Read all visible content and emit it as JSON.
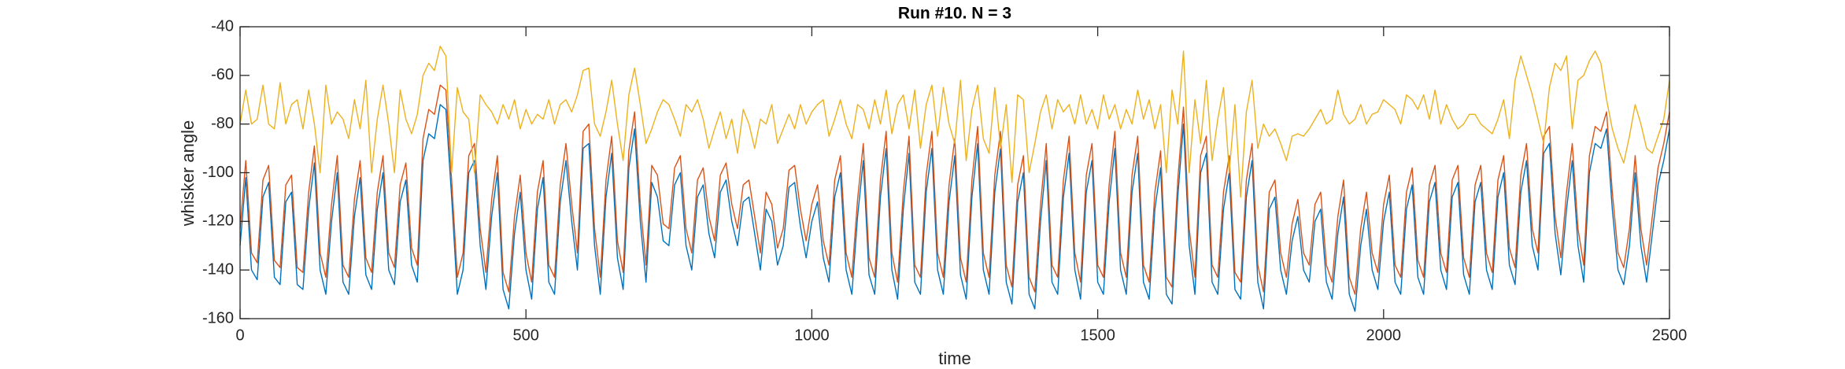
{
  "chart_data": {
    "type": "line",
    "title": "Run #10. N = 3",
    "x_label": "time",
    "y_label": "whisker angle",
    "xlim": [
      0,
      2500
    ],
    "xticks": [
      0,
      500,
      1000,
      1500,
      2000,
      2500
    ],
    "ylim": [
      -160,
      -40
    ],
    "yticks": [
      -160,
      -140,
      -120,
      -100,
      -80,
      -60,
      -40
    ],
    "grid": false,
    "x": [
      0,
      10,
      20,
      30,
      40,
      50,
      60,
      70,
      80,
      90,
      100,
      110,
      120,
      130,
      140,
      150,
      160,
      170,
      180,
      190,
      200,
      210,
      220,
      230,
      240,
      250,
      260,
      270,
      280,
      290,
      300,
      310,
      320,
      330,
      340,
      350,
      360,
      370,
      380,
      390,
      400,
      410,
      420,
      430,
      440,
      450,
      460,
      470,
      480,
      490,
      500,
      510,
      520,
      530,
      540,
      550,
      560,
      570,
      580,
      590,
      600,
      610,
      620,
      630,
      640,
      650,
      660,
      670,
      680,
      690,
      700,
      710,
      720,
      730,
      740,
      750,
      760,
      770,
      780,
      790,
      800,
      810,
      820,
      830,
      840,
      850,
      860,
      870,
      880,
      890,
      900,
      910,
      920,
      930,
      940,
      950,
      960,
      970,
      980,
      990,
      1000,
      1010,
      1020,
      1030,
      1040,
      1050,
      1060,
      1070,
      1080,
      1090,
      1100,
      1110,
      1120,
      1130,
      1140,
      1150,
      1160,
      1170,
      1180,
      1190,
      1200,
      1210,
      1220,
      1230,
      1240,
      1250,
      1260,
      1270,
      1280,
      1290,
      1300,
      1310,
      1320,
      1330,
      1340,
      1350,
      1360,
      1370,
      1380,
      1390,
      1400,
      1410,
      1420,
      1430,
      1440,
      1450,
      1460,
      1470,
      1480,
      1490,
      1500,
      1510,
      1520,
      1530,
      1540,
      1550,
      1560,
      1570,
      1580,
      1590,
      1600,
      1610,
      1620,
      1630,
      1640,
      1650,
      1660,
      1670,
      1680,
      1690,
      1700,
      1710,
      1720,
      1730,
      1740,
      1750,
      1760,
      1770,
      1780,
      1790,
      1800,
      1810,
      1820,
      1830,
      1840,
      1850,
      1860,
      1870,
      1880,
      1890,
      1900,
      1910,
      1920,
      1930,
      1940,
      1950,
      1960,
      1970,
      1980,
      1990,
      2000,
      2010,
      2020,
      2030,
      2040,
      2050,
      2060,
      2070,
      2080,
      2090,
      2100,
      2110,
      2120,
      2130,
      2140,
      2150,
      2160,
      2170,
      2180,
      2190,
      2200,
      2210,
      2220,
      2230,
      2240,
      2250,
      2260,
      2270,
      2280,
      2290,
      2300,
      2310,
      2320,
      2330,
      2340,
      2350,
      2360,
      2370,
      2380,
      2390,
      2400,
      2410,
      2420,
      2430,
      2440,
      2450,
      2460,
      2470,
      2480,
      2490,
      2500
    ],
    "series": [
      {
        "color": "#0072bd",
        "values": [
          -130,
          -102,
          -140,
          -144,
          -110,
          -104,
          -143,
          -146,
          -112,
          -108,
          -146,
          -148,
          -115,
          -96,
          -140,
          -150,
          -120,
          -100,
          -145,
          -150,
          -118,
          -102,
          -142,
          -148,
          -115,
          -100,
          -140,
          -146,
          -112,
          -103,
          -138,
          -145,
          -95,
          -84,
          -86,
          -72,
          -74,
          -110,
          -150,
          -140,
          -100,
          -95,
          -130,
          -148,
          -118,
          -100,
          -148,
          -156,
          -125,
          -108,
          -140,
          -152,
          -115,
          -102,
          -145,
          -150,
          -112,
          -95,
          -120,
          -140,
          -90,
          -88,
          -130,
          -150,
          -110,
          -92,
          -135,
          -148,
          -98,
          -82,
          -120,
          -145,
          -104,
          -110,
          -128,
          -130,
          -105,
          -100,
          -130,
          -140,
          -110,
          -105,
          -125,
          -135,
          -108,
          -103,
          -120,
          -130,
          -112,
          -110,
          -125,
          -140,
          -115,
          -120,
          -138,
          -130,
          -106,
          -104,
          -122,
          -135,
          -120,
          -112,
          -135,
          -145,
          -110,
          -100,
          -140,
          -150,
          -118,
          -95,
          -142,
          -150,
          -110,
          -90,
          -140,
          -152,
          -115,
          -92,
          -145,
          -150,
          -108,
          -90,
          -140,
          -150,
          -112,
          -93,
          -142,
          -152,
          -110,
          -88,
          -140,
          -150,
          -108,
          -90,
          -145,
          -154,
          -112,
          -100,
          -150,
          -156,
          -120,
          -95,
          -145,
          -150,
          -110,
          -92,
          -140,
          -152,
          -108,
          -95,
          -145,
          -150,
          -112,
          -90,
          -140,
          -150,
          -108,
          -92,
          -145,
          -152,
          -115,
          -98,
          -150,
          -154,
          -110,
          -80,
          -130,
          -150,
          -100,
          -92,
          -145,
          -150,
          -115,
          -100,
          -148,
          -152,
          -110,
          -95,
          -145,
          -156,
          -115,
          -110,
          -140,
          -150,
          -128,
          -118,
          -140,
          -145,
          -120,
          -115,
          -145,
          -152,
          -125,
          -110,
          -150,
          -157,
          -130,
          -115,
          -140,
          -148,
          -120,
          -108,
          -145,
          -150,
          -115,
          -105,
          -143,
          -150,
          -112,
          -104,
          -140,
          -148,
          -110,
          -104,
          -142,
          -150,
          -112,
          -104,
          -140,
          -148,
          -110,
          -100,
          -138,
          -146,
          -108,
          -95,
          -130,
          -140,
          -92,
          -88,
          -125,
          -142,
          -115,
          -95,
          -130,
          -145,
          -100,
          -88,
          -90,
          -82,
          -115,
          -140,
          -146,
          -130,
          -100,
          -130,
          -145,
          -125,
          -105,
          -95,
          -82
        ]
      },
      {
        "color": "#d95319",
        "values": [
          -123,
          -95,
          -133,
          -137,
          -103,
          -97,
          -136,
          -139,
          -105,
          -101,
          -139,
          -141,
          -108,
          -89,
          -133,
          -143,
          -113,
          -93,
          -138,
          -143,
          -111,
          -95,
          -135,
          -141,
          -108,
          -93,
          -133,
          -139,
          -105,
          -96,
          -131,
          -138,
          -86,
          -74,
          -76,
          -64,
          -66,
          -103,
          -143,
          -133,
          -93,
          -88,
          -123,
          -141,
          -111,
          -93,
          -141,
          -149,
          -118,
          -101,
          -133,
          -145,
          -108,
          -95,
          -138,
          -143,
          -105,
          -88,
          -113,
          -133,
          -83,
          -80,
          -123,
          -143,
          -103,
          -85,
          -128,
          -141,
          -91,
          -75,
          -113,
          -138,
          -97,
          -101,
          -121,
          -123,
          -98,
          -93,
          -123,
          -133,
          -103,
          -98,
          -118,
          -128,
          -101,
          -96,
          -113,
          -123,
          -105,
          -103,
          -118,
          -133,
          -108,
          -113,
          -131,
          -123,
          -99,
          -97,
          -115,
          -128,
          -113,
          -105,
          -128,
          -138,
          -103,
          -93,
          -133,
          -143,
          -111,
          -88,
          -135,
          -143,
          -103,
          -83,
          -133,
          -145,
          -108,
          -85,
          -138,
          -143,
          -101,
          -83,
          -133,
          -143,
          -105,
          -86,
          -135,
          -145,
          -103,
          -81,
          -133,
          -143,
          -101,
          -83,
          -138,
          -147,
          -105,
          -93,
          -143,
          -149,
          -113,
          -88,
          -138,
          -143,
          -103,
          -85,
          -133,
          -145,
          -101,
          -88,
          -138,
          -143,
          -105,
          -83,
          -133,
          -143,
          -101,
          -85,
          -138,
          -145,
          -108,
          -91,
          -143,
          -147,
          -103,
          -73,
          -123,
          -143,
          -93,
          -85,
          -138,
          -143,
          -108,
          -93,
          -141,
          -145,
          -103,
          -88,
          -138,
          -149,
          -108,
          -103,
          -133,
          -143,
          -121,
          -111,
          -133,
          -138,
          -113,
          -108,
          -138,
          -145,
          -118,
          -103,
          -143,
          -150,
          -123,
          -108,
          -133,
          -141,
          -113,
          -101,
          -138,
          -143,
          -108,
          -98,
          -136,
          -143,
          -105,
          -97,
          -133,
          -141,
          -103,
          -97,
          -135,
          -143,
          -105,
          -97,
          -133,
          -141,
          -103,
          -93,
          -131,
          -139,
          -101,
          -88,
          -123,
          -133,
          -85,
          -81,
          -118,
          -135,
          -108,
          -88,
          -123,
          -138,
          -93,
          -81,
          -83,
          -75,
          -108,
          -133,
          -139,
          -123,
          -93,
          -123,
          -138,
          -118,
          -98,
          -88,
          -75
        ]
      },
      {
        "color": "#edb120",
        "values": [
          -80,
          -66,
          -80,
          -78,
          -64,
          -80,
          -82,
          -63,
          -80,
          -72,
          -70,
          -82,
          -66,
          -80,
          -100,
          -64,
          -80,
          -75,
          -78,
          -86,
          -70,
          -82,
          -62,
          -100,
          -78,
          -64,
          -80,
          -100,
          -66,
          -78,
          -84,
          -76,
          -60,
          -55,
          -58,
          -48,
          -52,
          -100,
          -65,
          -75,
          -78,
          -100,
          -68,
          -72,
          -75,
          -80,
          -72,
          -78,
          -70,
          -82,
          -74,
          -80,
          -76,
          -78,
          -70,
          -80,
          -72,
          -70,
          -75,
          -68,
          -58,
          -57,
          -80,
          -85,
          -75,
          -62,
          -80,
          -95,
          -68,
          -57,
          -72,
          -88,
          -82,
          -75,
          -70,
          -72,
          -78,
          -85,
          -72,
          -75,
          -70,
          -78,
          -90,
          -82,
          -75,
          -86,
          -78,
          -92,
          -74,
          -80,
          -90,
          -78,
          -80,
          -72,
          -88,
          -82,
          -76,
          -82,
          -72,
          -80,
          -75,
          -72,
          -70,
          -85,
          -78,
          -70,
          -80,
          -86,
          -72,
          -74,
          -82,
          -70,
          -80,
          -66,
          -84,
          -72,
          -68,
          -82,
          -66,
          -90,
          -72,
          -64,
          -85,
          -65,
          -80,
          -88,
          -62,
          -95,
          -74,
          -64,
          -86,
          -92,
          -65,
          -90,
          -72,
          -104,
          -68,
          -70,
          -100,
          -88,
          -75,
          -68,
          -82,
          -70,
          -75,
          -72,
          -80,
          -68,
          -80,
          -74,
          -82,
          -68,
          -78,
          -72,
          -82,
          -74,
          -80,
          -66,
          -78,
          -70,
          -82,
          -72,
          -100,
          -66,
          -80,
          -50,
          -100,
          -70,
          -88,
          -62,
          -95,
          -78,
          -65,
          -100,
          -72,
          -110,
          -75,
          -62,
          -90,
          -80,
          -85,
          -82,
          -88,
          -95,
          -85,
          -84,
          -85,
          -82,
          -78,
          -74,
          -80,
          -78,
          -66,
          -76,
          -80,
          -78,
          -72,
          -80,
          -76,
          -75,
          -70,
          -72,
          -74,
          -80,
          -68,
          -70,
          -74,
          -68,
          -78,
          -66,
          -80,
          -72,
          -78,
          -82,
          -80,
          -76,
          -76,
          -80,
          -82,
          -84,
          -78,
          -70,
          -86,
          -62,
          -52,
          -60,
          -68,
          -78,
          -88,
          -65,
          -55,
          -58,
          -52,
          -82,
          -62,
          -60,
          -54,
          -50,
          -55,
          -70,
          -82,
          -90,
          -96,
          -85,
          -72,
          -80,
          -90,
          -92,
          -85,
          -78,
          -62
        ]
      }
    ]
  }
}
